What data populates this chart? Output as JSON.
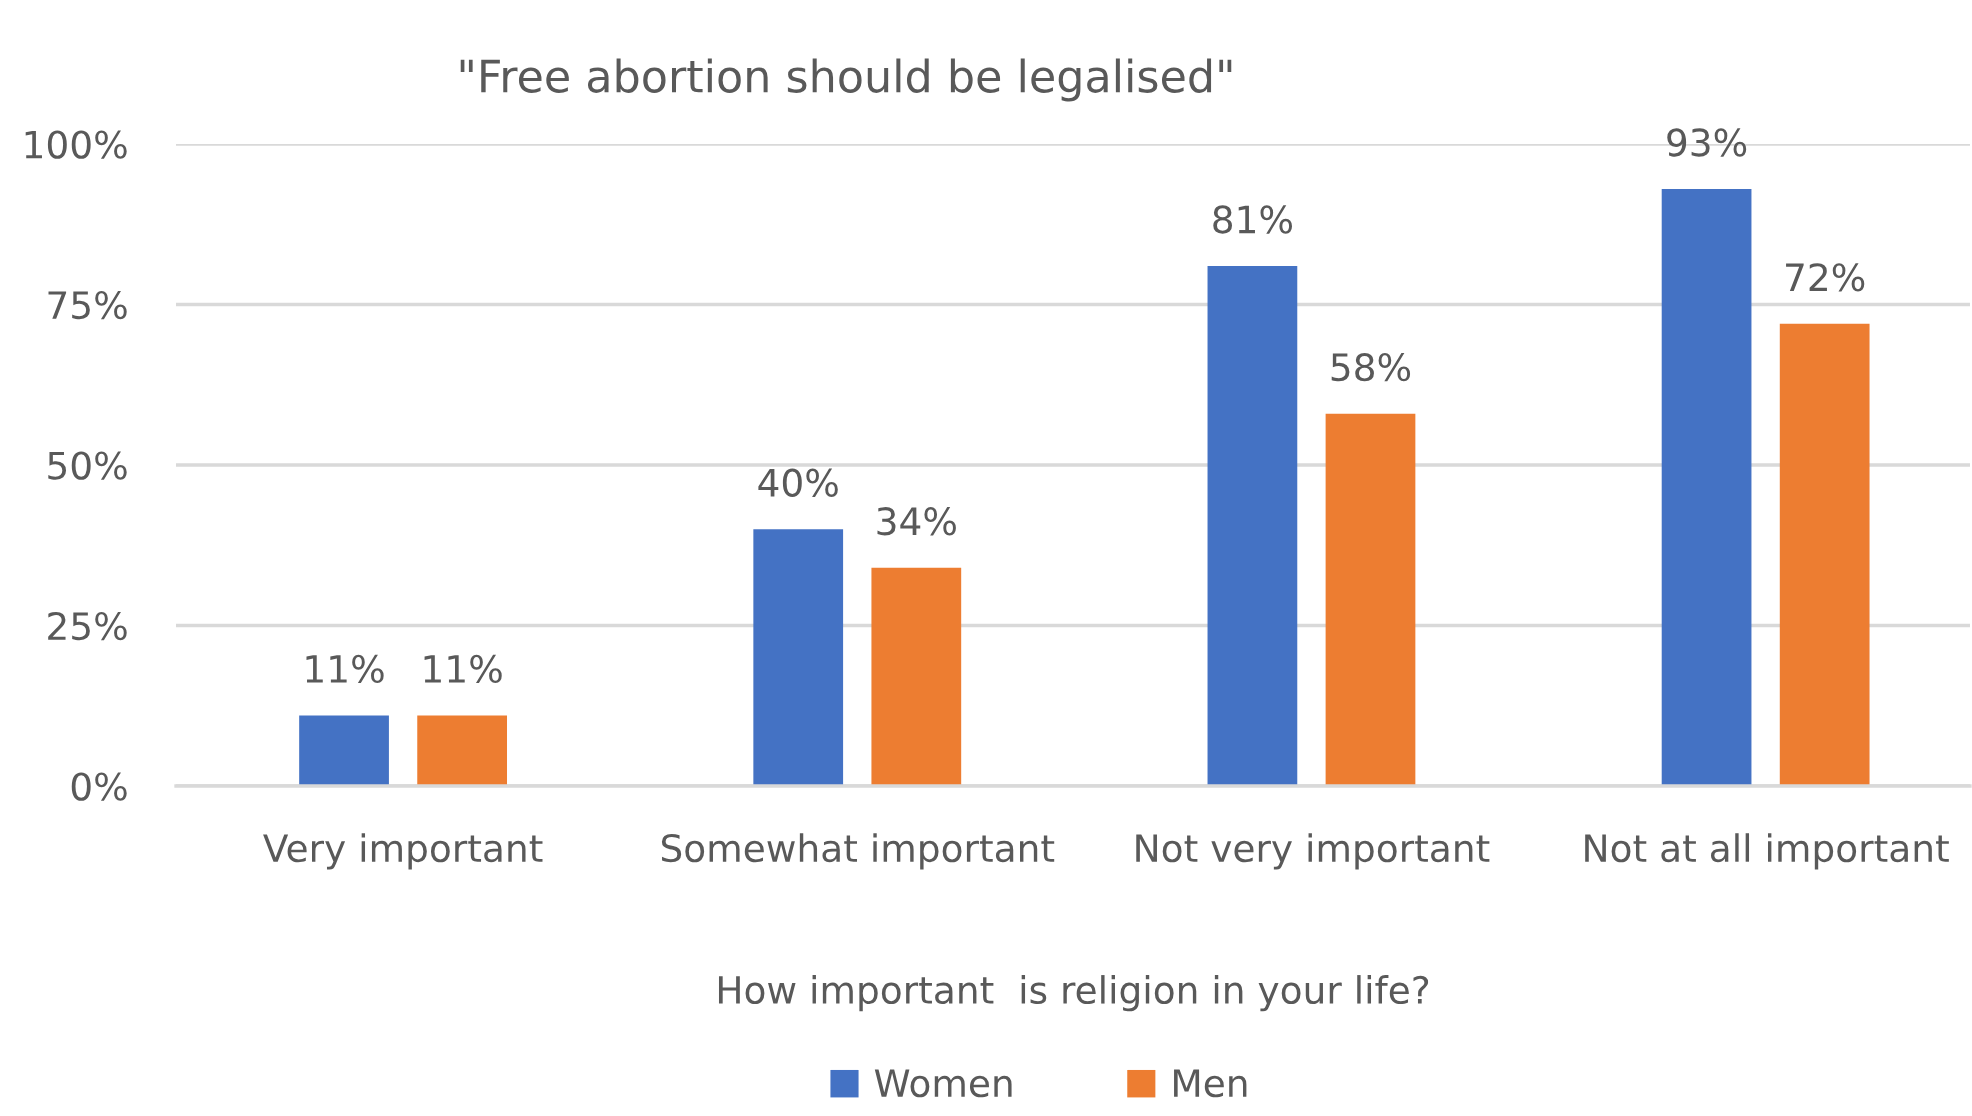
{
  "chart_data": {
    "type": "bar",
    "title": "\"Free abortion should be legalised\"",
    "xlabel": "How important  is religion in your life?",
    "categories": [
      "Very important",
      "Somewhat important",
      "Not very important",
      "Not at all important"
    ],
    "series": [
      {
        "name": "Women",
        "color": "#4472c4",
        "values": [
          11,
          40,
          81,
          93
        ],
        "value_labels": [
          "11%",
          "40%",
          "81%",
          "93%"
        ]
      },
      {
        "name": "Men",
        "color": "#ed7d31",
        "values": [
          11,
          34,
          58,
          72
        ],
        "value_labels": [
          "11%",
          "34%",
          "58%",
          "72%"
        ]
      }
    ],
    "ylim": [
      0,
      100
    ],
    "yticks": [
      {
        "value": 0,
        "label": "0%"
      },
      {
        "value": 25,
        "label": "25%"
      },
      {
        "value": 50,
        "label": "50%"
      },
      {
        "value": 75,
        "label": "75%"
      },
      {
        "value": 100,
        "label": "100%"
      }
    ],
    "grid": "y",
    "legend": "bottom"
  }
}
